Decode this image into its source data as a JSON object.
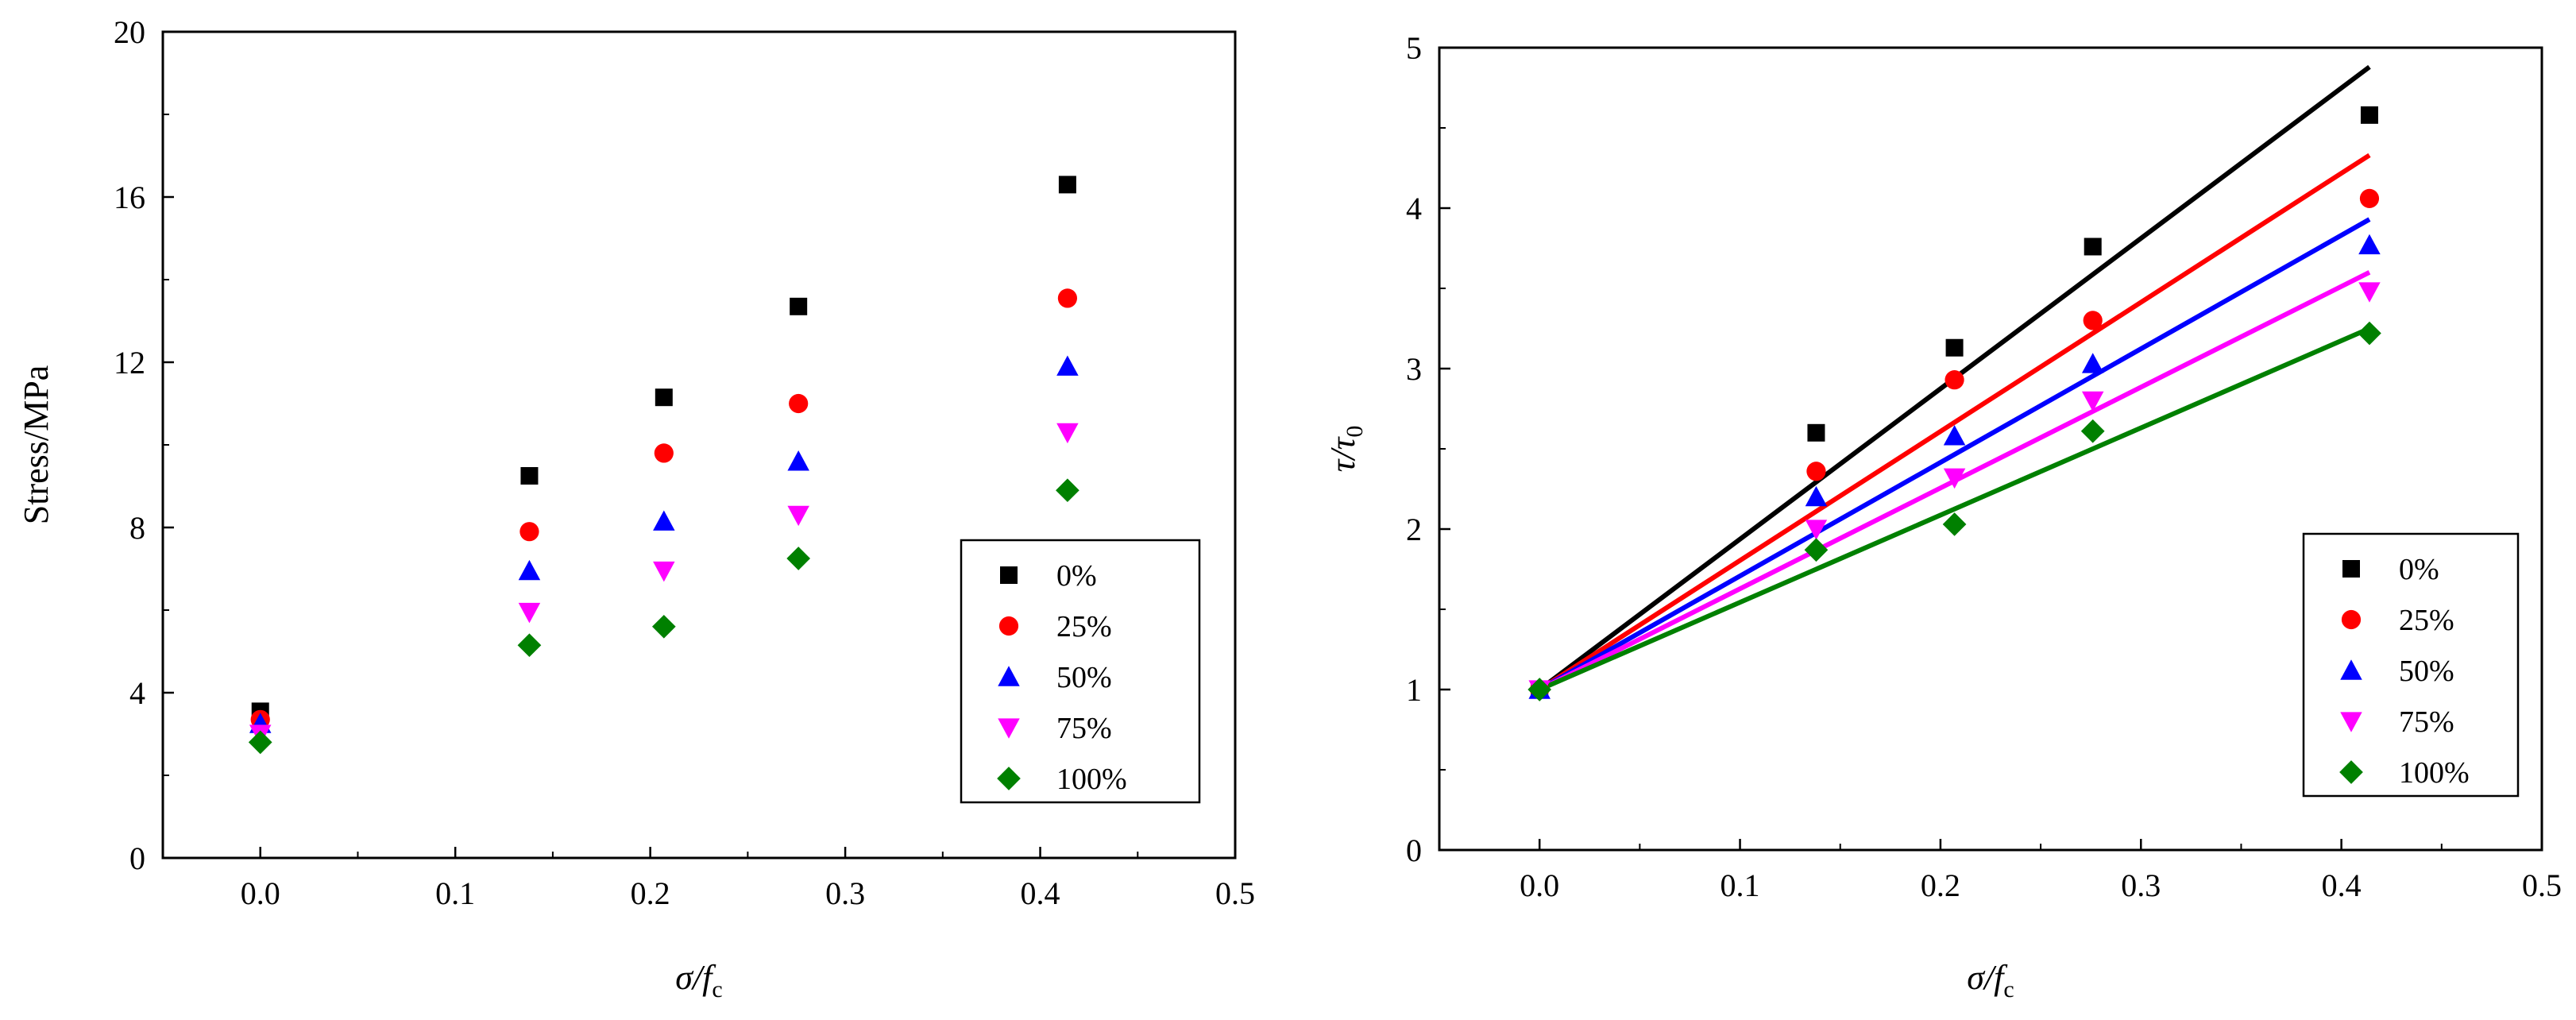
{
  "chart_data": [
    {
      "type": "scatter",
      "title": "",
      "xlabel": {
        "main": "σ/f",
        "sub": "c"
      },
      "ylabel": {
        "main": "Stress/MPa"
      },
      "xlim": [
        -0.05,
        0.5
      ],
      "ylim": [
        0,
        20
      ],
      "xticks": [
        0.0,
        0.1,
        0.2,
        0.3,
        0.4,
        0.5
      ],
      "xtick_labels": [
        "0.0",
        "0.1",
        "0.2",
        "0.3",
        "0.4",
        "0.5"
      ],
      "yticks": [
        0,
        4,
        8,
        12,
        16,
        20
      ],
      "ytick_labels": [
        "0",
        "4",
        "8",
        "12",
        "16",
        "20"
      ],
      "legend_position": "bottom-right",
      "x": [
        0.0,
        0.138,
        0.207,
        0.276,
        0.414
      ],
      "series": [
        {
          "name": "0%",
          "marker": "square",
          "color": "#000000",
          "values": [
            3.55,
            9.25,
            11.15,
            13.35,
            16.3
          ]
        },
        {
          "name": "25%",
          "marker": "circle",
          "color": "#ff0000",
          "values": [
            3.35,
            7.9,
            9.8,
            11.0,
            13.55
          ]
        },
        {
          "name": "50%",
          "marker": "triangle-up",
          "color": "#0000ff",
          "values": [
            3.25,
            6.95,
            8.15,
            9.6,
            11.9
          ]
        },
        {
          "name": "75%",
          "marker": "triangle-down",
          "color": "#ff00ff",
          "values": [
            3.0,
            5.95,
            6.95,
            8.3,
            10.3
          ]
        },
        {
          "name": "100%",
          "marker": "diamond",
          "color": "#008000",
          "values": [
            2.8,
            5.15,
            5.6,
            7.25,
            8.9
          ]
        }
      ]
    },
    {
      "type": "scatter",
      "title": "",
      "xlabel": {
        "main": "σ/f",
        "sub": "c"
      },
      "ylabel": {
        "main": "τ/τ",
        "sub": "0"
      },
      "xlim": [
        -0.05,
        0.5
      ],
      "ylim": [
        0,
        5
      ],
      "xticks": [
        0.0,
        0.1,
        0.2,
        0.3,
        0.4,
        0.5
      ],
      "xtick_labels": [
        "0.0",
        "0.1",
        "0.2",
        "0.3",
        "0.4",
        "0.5"
      ],
      "yticks": [
        0,
        1,
        2,
        3,
        4,
        5
      ],
      "ytick_labels": [
        "0",
        "1",
        "2",
        "3",
        "4",
        "5"
      ],
      "legend_position": "bottom-right",
      "x": [
        0.0,
        0.138,
        0.207,
        0.276,
        0.414
      ],
      "fit_x_range": [
        0.0,
        0.414
      ],
      "series": [
        {
          "name": "0%",
          "marker": "square",
          "color": "#000000",
          "values": [
            1.0,
            2.6,
            3.13,
            3.76,
            4.58
          ],
          "fit": [
            1.0,
            4.88
          ]
        },
        {
          "name": "25%",
          "marker": "circle",
          "color": "#ff0000",
          "values": [
            1.0,
            2.36,
            2.93,
            3.3,
            4.06
          ],
          "fit": [
            1.0,
            4.33
          ]
        },
        {
          "name": "50%",
          "marker": "triangle-up",
          "color": "#0000ff",
          "values": [
            1.0,
            2.2,
            2.58,
            3.03,
            3.77
          ],
          "fit": [
            1.0,
            3.93
          ]
        },
        {
          "name": "75%",
          "marker": "triangle-down",
          "color": "#ff00ff",
          "values": [
            1.0,
            2.0,
            2.32,
            2.8,
            3.48
          ],
          "fit": [
            1.0,
            3.6
          ]
        },
        {
          "name": "100%",
          "marker": "diamond",
          "color": "#008000",
          "values": [
            1.0,
            1.87,
            2.03,
            2.61,
            3.22
          ],
          "fit": [
            1.0,
            3.25
          ]
        }
      ]
    }
  ]
}
